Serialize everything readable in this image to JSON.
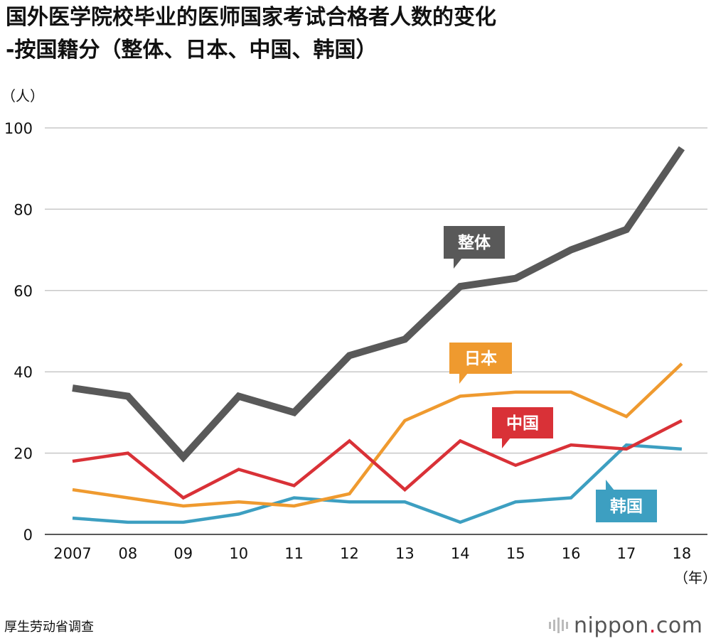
{
  "title_line1": "国外医学院校毕业的医师国家考试合格者人数的变化",
  "title_line2": "-按国籍分（整体、日本、中国、韩国）",
  "source": "厚生劳动省调查",
  "logo": {
    "name": "nippon",
    "dot": ".",
    "tld": "com"
  },
  "chart_data": {
    "type": "line",
    "title": "国外医学院校毕业的医师国家考试合格者人数的变化 -按国籍分（整体、日本、中国、韩国）",
    "ylabel": "（人）",
    "xlabel": "（年）",
    "ylim": [
      0,
      100
    ],
    "yticks": [
      0,
      20,
      40,
      60,
      80,
      100
    ],
    "grid": true,
    "categories": [
      "2007",
      "08",
      "09",
      "10",
      "11",
      "12",
      "13",
      "14",
      "15",
      "16",
      "17",
      "18"
    ],
    "series": [
      {
        "name": "整体",
        "color": "#595959",
        "values": [
          36,
          34,
          19,
          34,
          30,
          44,
          48,
          61,
          63,
          70,
          75,
          95
        ]
      },
      {
        "name": "日本",
        "color": "#ef9a2f",
        "values": [
          11,
          9,
          7,
          8,
          7,
          10,
          28,
          34,
          35,
          35,
          29,
          42
        ]
      },
      {
        "name": "中国",
        "color": "#d93137",
        "values": [
          18,
          20,
          9,
          16,
          12,
          23,
          11,
          23,
          17,
          22,
          21,
          28
        ]
      },
      {
        "name": "韩国",
        "color": "#3d9fc1",
        "values": [
          4,
          3,
          3,
          5,
          9,
          8,
          8,
          3,
          8,
          9,
          22,
          21
        ]
      }
    ]
  }
}
